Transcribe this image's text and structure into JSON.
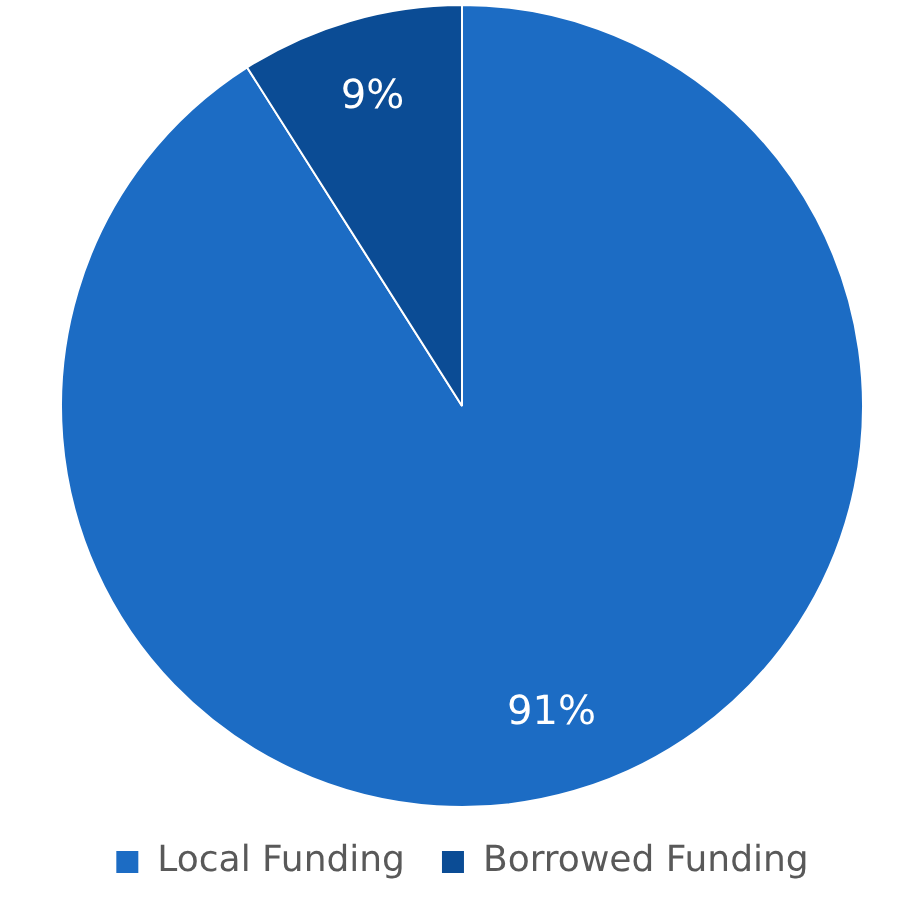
{
  "chart_data": {
    "type": "pie",
    "categories": [
      "Local Funding",
      "Borrowed Funding"
    ],
    "values": [
      91,
      9
    ],
    "colors": [
      "#1c6cc4",
      "#0b4c95"
    ],
    "value_labels": [
      "91%",
      "9%"
    ],
    "legend": "bottom"
  }
}
